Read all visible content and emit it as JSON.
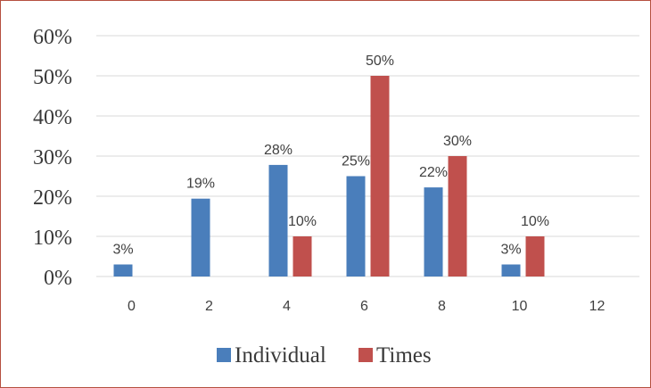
{
  "chart_data": {
    "type": "bar",
    "categories": [
      "0",
      "2",
      "4",
      "6",
      "8",
      "10",
      "12"
    ],
    "series": [
      {
        "name": "Individual",
        "values": [
          3,
          19.4,
          27.8,
          25,
          22.2,
          3,
          0
        ],
        "labels": [
          "3%",
          "19%",
          "28%",
          "25%",
          "22%",
          "3%",
          ""
        ]
      },
      {
        "name": "Times",
        "values": [
          0,
          0,
          10,
          50,
          30,
          10,
          0
        ],
        "labels": [
          "",
          "",
          "10%",
          "50%",
          "30%",
          "10%",
          ""
        ]
      }
    ],
    "ylim": [
      0,
      60
    ],
    "yticks": [
      "0%",
      "10%",
      "20%",
      "30%",
      "40%",
      "50%",
      "60%"
    ],
    "grid": true,
    "legend": "bottom",
    "colors": {
      "Individual": "#4a7ebb",
      "Times": "#c0504d"
    }
  }
}
